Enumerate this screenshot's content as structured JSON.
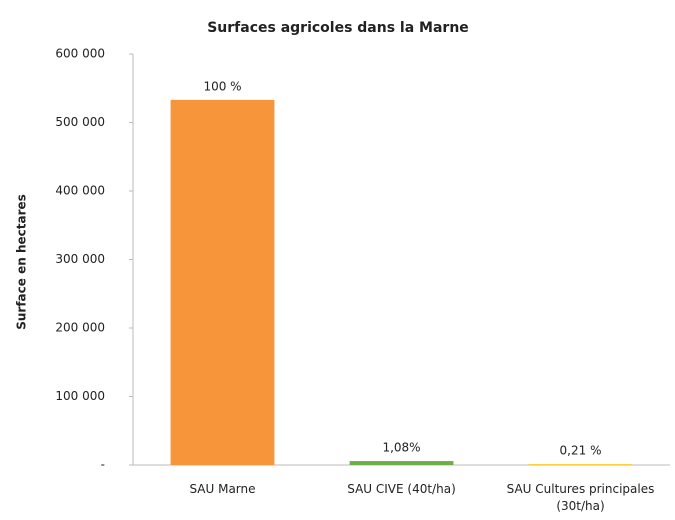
{
  "chart_data": {
    "type": "bar",
    "title": "Surfaces agricoles dans la Marne",
    "y_label": "Surface en hectares",
    "categories": [
      "SAU Marne",
      "SAU CIVE (40t/ha)",
      "SAU Cultures principales (30t/ha)"
    ],
    "values": [
      533000,
      5756,
      1119
    ],
    "annotations": [
      "100 %",
      "1,08%",
      "0,21 %"
    ],
    "colors": [
      "#f7953a",
      "#70ad47",
      "#ffc000"
    ],
    "ylim": [
      0,
      600000
    ],
    "yticks": [
      {
        "value": 0,
        "label": "-"
      },
      {
        "value": 100000,
        "label": "100 000"
      },
      {
        "value": 200000,
        "label": "200 000"
      },
      {
        "value": 300000,
        "label": "300 000"
      },
      {
        "value": 400000,
        "label": "400 000"
      },
      {
        "value": 500000,
        "label": "500 000"
      },
      {
        "value": 600000,
        "label": "600 000"
      }
    ],
    "grid": false
  }
}
